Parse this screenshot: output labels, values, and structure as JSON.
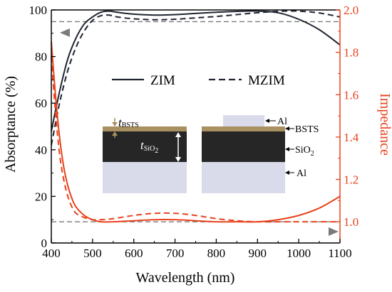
{
  "colors": {
    "left_axis": "#000000",
    "right_axis": "#e8421c",
    "absorptance_line": "#1f2430",
    "impedance_line": "#e8421c",
    "reference_line": "#7a7a7a",
    "layer_bsts": "#a99060",
    "layer_sio2": "#262626",
    "layer_al": "#d9dbea"
  },
  "chart_data": {
    "type": "line",
    "xlabel": "Wavelength (nm)",
    "ylabel_left": "Absorptance (%)",
    "ylabel_right": "Impedance",
    "xlim": [
      400,
      1100
    ],
    "ylim_left": [
      0,
      100
    ],
    "ylim_right": [
      0.9,
      2.0
    ],
    "x_ticks": [
      "400",
      "500",
      "600",
      "700",
      "800",
      "900",
      "1000",
      "1100"
    ],
    "y_left_ticks": [
      "0",
      "20",
      "40",
      "60",
      "80",
      "100"
    ],
    "y_right_ticks": [
      "1.0",
      "1.2",
      "1.4",
      "1.6",
      "1.8",
      "2.0"
    ],
    "reference_lines": [
      {
        "axis": "left",
        "y": 95
      },
      {
        "axis": "right",
        "y": 1.0
      }
    ],
    "series": [
      {
        "name": "ZIM",
        "axis": "left",
        "style": "solid",
        "x": [
          400,
          420,
          440,
          460,
          480,
          500,
          520,
          540,
          560,
          600,
          650,
          700,
          750,
          800,
          850,
          900,
          950,
          1000,
          1050,
          1100
        ],
        "y": [
          48,
          65,
          79,
          88,
          94,
          97,
          99,
          99.5,
          99,
          98.2,
          97.8,
          98,
          98.5,
          99,
          99.4,
          99.5,
          98.8,
          96,
          91.5,
          85
        ]
      },
      {
        "name": "MZIM",
        "axis": "left",
        "style": "dashed",
        "x": [
          400,
          420,
          440,
          460,
          480,
          500,
          520,
          540,
          560,
          600,
          650,
          700,
          750,
          800,
          850,
          900,
          950,
          1000,
          1050,
          1100
        ],
        "y": [
          42,
          60,
          74,
          84,
          91,
          95.5,
          97.5,
          97.8,
          97,
          96.2,
          95.8,
          96,
          96.6,
          97.2,
          98,
          98.8,
          99.4,
          99.5,
          98.7,
          97
        ]
      },
      {
        "name": "ZIM",
        "axis": "right",
        "style": "solid",
        "x": [
          400,
          410,
          420,
          430,
          440,
          450,
          460,
          480,
          500,
          520,
          550,
          600,
          650,
          700,
          750,
          800,
          850,
          900,
          950,
          1000,
          1050,
          1100
        ],
        "y": [
          1.85,
          1.6,
          1.4,
          1.26,
          1.17,
          1.11,
          1.07,
          1.03,
          1.01,
          1.0,
          1.0,
          1.005,
          1.01,
          1.01,
          1.005,
          1.0,
          1.0,
          1.0,
          1.01,
          1.03,
          1.065,
          1.12
        ]
      },
      {
        "name": "MZIM",
        "axis": "right",
        "style": "dashed",
        "x": [
          400,
          410,
          420,
          430,
          440,
          450,
          460,
          480,
          500,
          520,
          550,
          600,
          650,
          700,
          750,
          800,
          850,
          900,
          950,
          1000,
          1050,
          1100
        ],
        "y": [
          1.78,
          1.52,
          1.32,
          1.2,
          1.12,
          1.07,
          1.04,
          1.02,
          1.01,
          1.01,
          1.015,
          1.03,
          1.04,
          1.04,
          1.03,
          1.015,
          1.005,
          1.0,
          1.0,
          1.0,
          1.0,
          1.0
        ]
      }
    ]
  },
  "legend": {
    "solid_label": "ZIM",
    "dashed_label": "MZIM"
  },
  "inset": {
    "thickness_symbol": "t",
    "bsts_subscript": "BSTS",
    "sio2_subscript": "SiO",
    "sio2_subscript_num": "2",
    "label_al_top": "Al",
    "label_bsts": "BSTS",
    "label_sio2": "SiO",
    "label_sio2_num": "2",
    "label_al_bottom": "Al"
  }
}
